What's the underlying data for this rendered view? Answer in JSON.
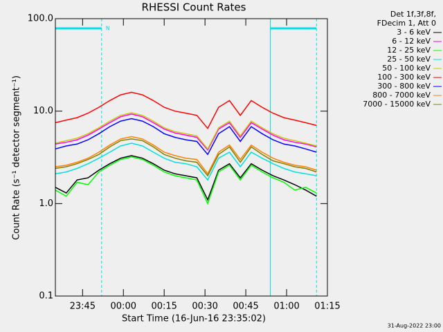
{
  "chart_data": {
    "type": "line",
    "title": "RHESSI Count Rates",
    "x_label": "Start Time (16-Jun-16 23:35:02)",
    "y_label": "Count Rate (s⁻¹ detector segment⁻¹)",
    "legend_header": [
      "Det 1f,3f,8f,",
      "FDecim 1, Att 0"
    ],
    "timestamp": "31-Aug-2022 23:00",
    "log_y": true,
    "xlim": [
      0,
      100
    ],
    "ylim": [
      0.1,
      100
    ],
    "xticks": [
      {
        "value": 10,
        "label": "23:45"
      },
      {
        "value": 25,
        "label": "00:00"
      },
      {
        "value": 40,
        "label": "00:15"
      },
      {
        "value": 55,
        "label": "00:30"
      },
      {
        "value": 70,
        "label": "00:45"
      },
      {
        "value": 85,
        "label": "01:00"
      },
      {
        "value": 100,
        "label": "01:15"
      }
    ],
    "yticks": [
      0.1,
      {
        "value": 1,
        "label": "1.0"
      },
      {
        "value": 10,
        "label": "10.0"
      },
      {
        "value": 100,
        "label": "100.0"
      }
    ],
    "night": {
      "label": "N",
      "color": "#00e0e0",
      "intervals": [
        {
          "start": 0,
          "end": 17
        },
        {
          "start": 79,
          "end": 96
        }
      ]
    },
    "x": [
      0,
      4,
      8,
      12,
      16,
      20,
      24,
      28,
      32,
      36,
      40,
      44,
      48,
      52,
      56,
      60,
      64,
      68,
      72,
      76,
      80,
      84,
      88,
      92,
      96
    ],
    "series": [
      {
        "name": "3 - 6 keV",
        "color": "#000000",
        "values": [
          1.5,
          1.3,
          1.8,
          1.9,
          2.3,
          2.7,
          3.1,
          3.3,
          3.1,
          2.7,
          2.3,
          2.1,
          2.0,
          1.9,
          1.1,
          2.3,
          2.7,
          1.9,
          2.7,
          2.3,
          2.0,
          1.8,
          1.6,
          1.4,
          1.2
        ]
      },
      {
        "name": "6 - 12 keV",
        "color": "#ff00ff",
        "values": [
          4.4,
          4.6,
          4.9,
          5.5,
          6.4,
          7.5,
          8.7,
          9.3,
          8.7,
          7.5,
          6.4,
          5.8,
          5.5,
          5.2,
          3.8,
          6.4,
          7.5,
          5.2,
          7.5,
          6.4,
          5.5,
          4.9,
          4.6,
          4.4,
          4.1
        ]
      },
      {
        "name": "12 - 25 keV",
        "color": "#00ff00",
        "values": [
          1.4,
          1.2,
          1.7,
          1.6,
          2.2,
          2.6,
          3.0,
          3.2,
          3.0,
          2.6,
          2.2,
          2.0,
          1.9,
          1.8,
          1.0,
          2.2,
          2.6,
          1.8,
          2.6,
          2.2,
          1.9,
          1.7,
          1.4,
          1.5,
          1.3
        ]
      },
      {
        "name": "25 - 50 keV",
        "color": "#00e0e0",
        "values": [
          2.1,
          2.2,
          2.4,
          2.7,
          3.1,
          3.6,
          4.2,
          4.5,
          4.2,
          3.6,
          3.1,
          2.8,
          2.7,
          2.5,
          1.8,
          3.1,
          3.6,
          2.5,
          3.6,
          3.1,
          2.7,
          2.4,
          2.2,
          2.1,
          2.0
        ]
      },
      {
        "name": "50 - 100 keV",
        "color": "#c8c800",
        "values": [
          4.5,
          4.8,
          5.1,
          5.7,
          6.6,
          7.8,
          9.0,
          9.6,
          9.0,
          7.8,
          6.6,
          6.0,
          5.7,
          5.4,
          3.9,
          6.6,
          7.8,
          5.4,
          7.8,
          6.6,
          5.7,
          5.1,
          4.8,
          4.5,
          4.2
        ]
      },
      {
        "name": "100 - 300 keV",
        "color": "#ff0000",
        "values": [
          7.5,
          8,
          8.5,
          9.5,
          11,
          13,
          15,
          16,
          15,
          13,
          11,
          10,
          9.5,
          9,
          6.5,
          11,
          13,
          9,
          13,
          11,
          9.5,
          8.5,
          8,
          7.5,
          7
        ]
      },
      {
        "name": "300 - 800 keV",
        "color": "#0000ff",
        "values": [
          3.9,
          4.2,
          4.4,
          4.9,
          5.7,
          6.8,
          7.8,
          8.3,
          7.8,
          6.8,
          5.7,
          5.2,
          4.9,
          4.7,
          3.4,
          5.7,
          6.8,
          4.7,
          6.8,
          5.7,
          4.9,
          4.4,
          4.2,
          3.9,
          3.6
        ]
      },
      {
        "name": "800 - 7000 keV",
        "color": "#ff8000",
        "values": [
          2.5,
          2.6,
          2.8,
          3.1,
          3.6,
          4.3,
          5.0,
          5.3,
          5.0,
          4.3,
          3.6,
          3.3,
          3.1,
          3.0,
          2.1,
          3.6,
          4.3,
          3.0,
          4.3,
          3.6,
          3.1,
          2.8,
          2.6,
          2.5,
          2.3
        ]
      },
      {
        "name": "7000 - 15000 keV",
        "color": "#808000",
        "values": [
          2.4,
          2.5,
          2.7,
          3.0,
          3.4,
          4.1,
          4.8,
          5.0,
          4.8,
          4.1,
          3.4,
          3.1,
          2.9,
          2.8,
          2.0,
          3.4,
          4.1,
          2.8,
          4.1,
          3.4,
          2.9,
          2.7,
          2.5,
          2.4,
          2.2
        ]
      }
    ]
  }
}
